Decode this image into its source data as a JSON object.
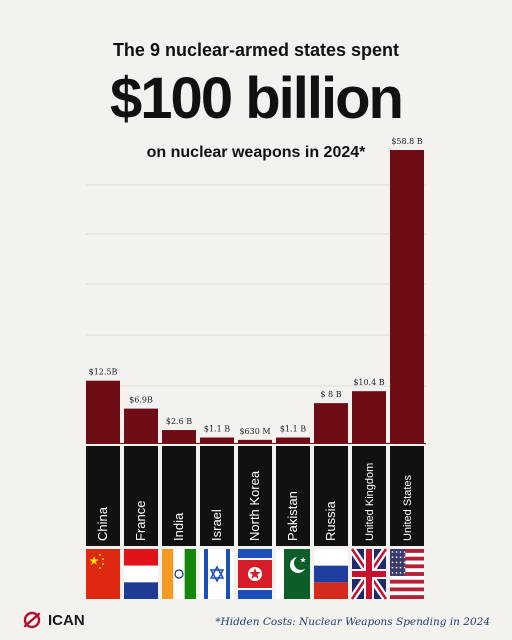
{
  "headline": {
    "line1": "The 9 nuclear-armed states spent",
    "line2": "$100 billion",
    "line3": "on nuclear weapons in 2024*"
  },
  "footer": {
    "logo": "ICAN",
    "source": "*Hidden Costs: Nuclear Weapons Spending in 2024"
  },
  "colors": {
    "bar": "#6e0d16",
    "background": "#f3f2ef",
    "label_band": "#111111",
    "source_text": "#1f3a70"
  },
  "chart_data": {
    "type": "bar",
    "unit": "billion USD",
    "categories": [
      "China",
      "France",
      "India",
      "Israel",
      "North Korea",
      "Pakistan",
      "Russia",
      "United Kingdom",
      "United States"
    ],
    "values": [
      12.5,
      6.9,
      2.6,
      1.1,
      0.63,
      1.1,
      8,
      10.4,
      58.8
    ],
    "value_labels": [
      "$12.5B",
      "$6.9B",
      "$2.6 B",
      "$1.1 B",
      "$630 M",
      "$1.1 B",
      "$ 8 B",
      "$10.4 B",
      "$58.8 B"
    ],
    "flags": [
      "china-flag-icon",
      "france-flag-icon",
      "india-flag-icon",
      "israel-flag-icon",
      "north-korea-flag-icon",
      "pakistan-flag-icon",
      "russia-flag-icon",
      "united-kingdom-flag-icon",
      "united-states-flag-icon"
    ],
    "ylim": [
      0,
      60
    ],
    "grid": true
  }
}
